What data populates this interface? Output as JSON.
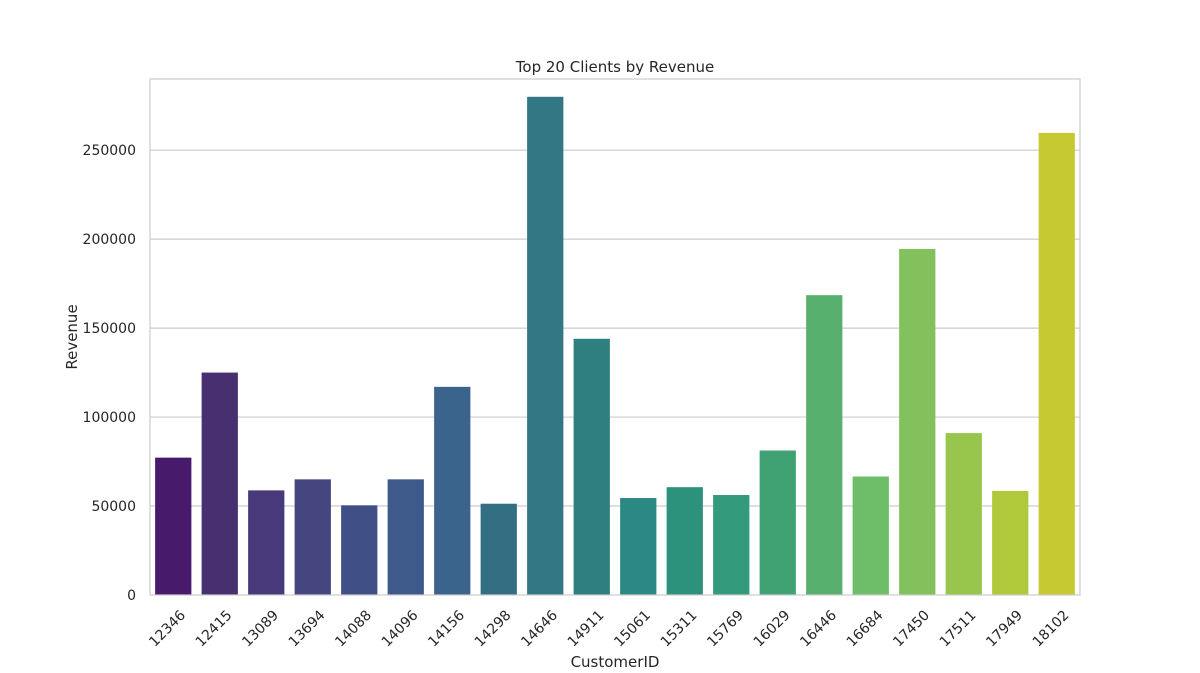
{
  "chart_data": {
    "type": "bar",
    "title": "Top 20 Clients by Revenue",
    "xlabel": "CustomerID",
    "ylabel": "Revenue",
    "ylim": [
      0,
      290000
    ],
    "yticks": [
      0,
      50000,
      100000,
      150000,
      200000,
      250000
    ],
    "ytick_labels": [
      "0",
      "50000",
      "100000",
      "150000",
      "200000",
      "250000"
    ],
    "grid": "horizontal",
    "categories": [
      "12346",
      "12415",
      "13089",
      "13694",
      "14088",
      "14096",
      "14156",
      "14298",
      "14646",
      "14911",
      "15061",
      "15311",
      "15769",
      "16029",
      "16446",
      "16684",
      "17450",
      "17511",
      "17949",
      "18102"
    ],
    "values": [
      77200,
      125000,
      58800,
      65000,
      50400,
      65000,
      117000,
      51300,
      280000,
      144000,
      54500,
      60600,
      56200,
      81200,
      168500,
      66600,
      194500,
      91000,
      58500,
      259700
    ],
    "colors": [
      "#481a6c",
      "#482f6f",
      "#47397a",
      "#45457f",
      "#414f87",
      "#3e5a8a",
      "#3b648c",
      "#336f82",
      "#337684",
      "#2f7f7f",
      "#2b8883",
      "#2d927c",
      "#339b7b",
      "#40a273",
      "#58b06e",
      "#6ebd69",
      "#82c15b",
      "#98c64c",
      "#b0c93a",
      "#c7c932"
    ]
  }
}
